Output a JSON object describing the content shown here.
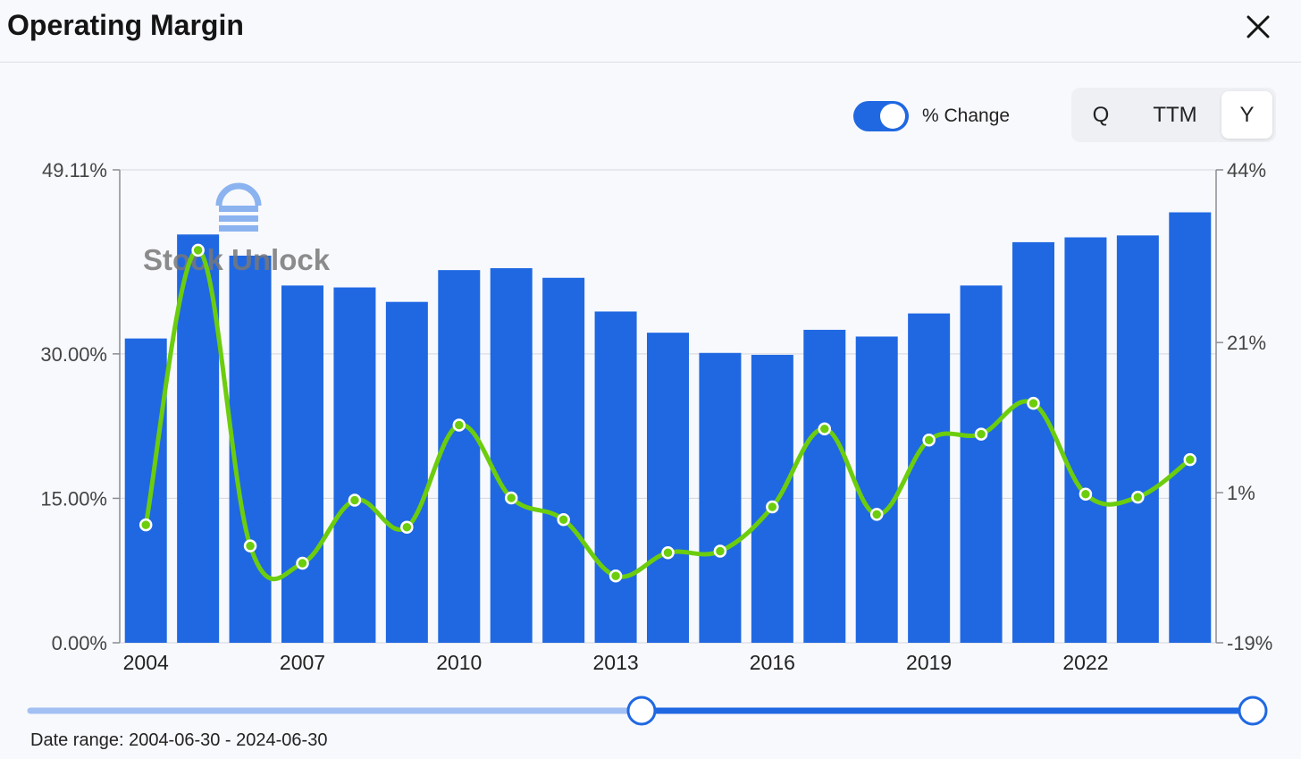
{
  "header": {
    "title": "Operating Margin"
  },
  "controls": {
    "toggle_label": "% Change",
    "toggle_on": true,
    "periods": [
      "Q",
      "TTM",
      "Y"
    ],
    "active_period": "Y"
  },
  "watermark": {
    "text": "Stock Unlock"
  },
  "colors": {
    "bar": "#1f68e2",
    "line": "#6ccd0d",
    "accent": "#1f68e2"
  },
  "chart_data": {
    "type": "bar",
    "title": "Operating Margin",
    "x": [
      2004,
      2005,
      2006,
      2007,
      2008,
      2009,
      2010,
      2011,
      2012,
      2013,
      2014,
      2015,
      2016,
      2017,
      2018,
      2019,
      2020,
      2021,
      2022,
      2023,
      2024
    ],
    "x_tick_labels": [
      "2004",
      "2007",
      "2010",
      "2013",
      "2016",
      "2019",
      "2022"
    ],
    "series": [
      {
        "type": "bar",
        "axis": "left",
        "values": [
          31.6,
          42.4,
          40.2,
          37.1,
          36.9,
          35.4,
          38.7,
          38.9,
          37.9,
          34.4,
          32.2,
          30.1,
          29.9,
          32.5,
          31.8,
          34.2,
          37.1,
          41.6,
          42.1,
          42.3,
          44.7
        ]
      },
      {
        "type": "line",
        "axis": "right",
        "values": [
          -3.3,
          33.3,
          -6.1,
          -8.4,
          0.0,
          -3.6,
          10.0,
          0.3,
          -2.6,
          -10.1,
          -7.0,
          -6.8,
          -0.9,
          9.5,
          -1.9,
          8.0,
          8.8,
          12.9,
          0.8,
          0.4,
          5.4
        ]
      }
    ],
    "y_left": {
      "ticks": [
        "0.00%",
        "15.00%",
        "30.00%",
        "49.11%"
      ],
      "tick_values": [
        0,
        15,
        30,
        49.11
      ],
      "range": [
        0,
        49.11
      ]
    },
    "y_right": {
      "ticks": [
        "-19%",
        "1%",
        "21%",
        "44%"
      ],
      "tick_values": [
        -19,
        1,
        21,
        44
      ],
      "range": [
        -19,
        44
      ]
    },
    "grid": true,
    "legend": "none"
  },
  "range_slider": {
    "start_fraction": 0.5,
    "end_fraction": 1.0,
    "date_range_text": "Date range: 2004-06-30 - 2024-06-30"
  }
}
